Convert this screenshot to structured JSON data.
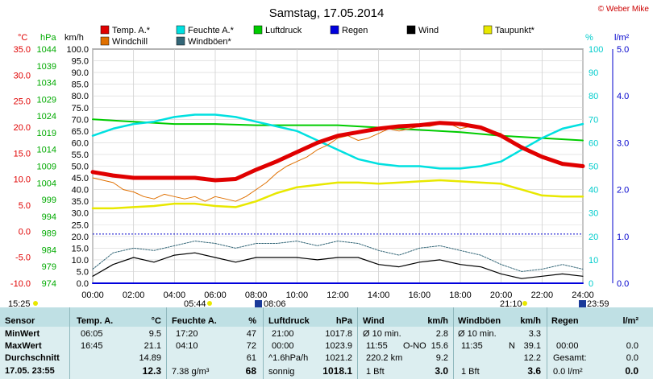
{
  "header": {
    "title": "Samstag, 17.05.2014",
    "copyright": "© Weber Mike"
  },
  "axis_units": {
    "temp": "°C",
    "pressure": "hPa",
    "wind": "km/h",
    "humidity": "%",
    "rain": "l/m²"
  },
  "legend": [
    {
      "label": "Temp. A.*",
      "color": "#e00000"
    },
    {
      "label": "Feuchte A.*",
      "color": "#00e0e0"
    },
    {
      "label": "Luftdruck",
      "color": "#00cc00"
    },
    {
      "label": "Regen",
      "color": "#0000dd"
    },
    {
      "label": "Wind",
      "color": "#000000"
    },
    {
      "label": "Taupunkt*",
      "color": "#e8e800"
    },
    {
      "label": "Windchill",
      "color": "#e07000"
    },
    {
      "label": "Windböen*",
      "color": "#336677"
    }
  ],
  "sun_marks": {
    "left_time": "15:25",
    "sunrise": "05:44",
    "sunrise2": "08:06",
    "sunset": "21:10",
    "right_time": "23:59"
  },
  "chart_data": {
    "type": "line",
    "x_ticks": [
      "00:00",
      "02:00",
      "04:00",
      "06:00",
      "08:00",
      "10:00",
      "12:00",
      "14:00",
      "16:00",
      "18:00",
      "20:00",
      "22:00",
      "24:00"
    ],
    "temp_ticks": [
      "35.0",
      "30.0",
      "25.0",
      "20.0",
      "15.0",
      "10.0",
      "5.0",
      "0.0",
      "-5.0",
      "-10.0"
    ],
    "pressure_ticks": [
      "1044",
      "1039",
      "1034",
      "1029",
      "1024",
      "1019",
      "1014",
      "1009",
      "1004",
      "999",
      "994",
      "989",
      "984",
      "979",
      "974"
    ],
    "wind_ticks": [
      "100.0",
      "95.0",
      "90.0",
      "85.0",
      "80.0",
      "75.0",
      "70.0",
      "65.0",
      "60.0",
      "55.0",
      "50.0",
      "45.0",
      "40.0",
      "35.0",
      "30.0",
      "25.0",
      "20.0",
      "15.0",
      "10.0",
      "5.0",
      "0.0"
    ],
    "humidity_ticks": [
      "100",
      "90",
      "80",
      "70",
      "60",
      "50",
      "40",
      "30",
      "20",
      "10",
      "0"
    ],
    "rain_ticks": [
      "5.0",
      "4.0",
      "3.0",
      "2.0",
      "1.0",
      "0.0"
    ],
    "wind_range": [
      0,
      100
    ],
    "x_range_hours": [
      0,
      24
    ],
    "series": [
      {
        "name": "Temp. A.*",
        "color": "#e00000",
        "hours": [
          0,
          1,
          2,
          3,
          4,
          5,
          6,
          7,
          8,
          9,
          10,
          11,
          12,
          13,
          14,
          15,
          16,
          17,
          18,
          19,
          20,
          21,
          22,
          23,
          24
        ],
        "values_kmh_scale": [
          47.5,
          46,
          45,
          45,
          45,
          45,
          44,
          44.5,
          48.5,
          52,
          56,
          60,
          63,
          64.5,
          66,
          67,
          67.5,
          68.5,
          68,
          66.5,
          63,
          58,
          54,
          51,
          50
        ]
      },
      {
        "name": "Windchill",
        "color": "#e07000",
        "hours": [
          0,
          0.5,
          1,
          1.5,
          2,
          2.5,
          3,
          3.5,
          4,
          4.5,
          5,
          5.5,
          6,
          6.5,
          7,
          7.5,
          8,
          8.5,
          9,
          9.5,
          10,
          10.5,
          11,
          11.5,
          12,
          12.5,
          13,
          13.5,
          14,
          14.5,
          15,
          15.5,
          16,
          16.5,
          17,
          17.5,
          18,
          18.5,
          19,
          19.5,
          20
        ],
        "values_kmh_scale": [
          45,
          44,
          43,
          40,
          39,
          37,
          36,
          38,
          37,
          36,
          37,
          35,
          37,
          36,
          35,
          37,
          40,
          43,
          47,
          50,
          52,
          54,
          57,
          59,
          62,
          63,
          61,
          62,
          64,
          66,
          65,
          66,
          67,
          67,
          68,
          68,
          66,
          67,
          66,
          65,
          64
        ]
      },
      {
        "name": "Feuchte A.*",
        "color": "#00e0e0",
        "hours": [
          0,
          1,
          2,
          3,
          4,
          5,
          6,
          7,
          8,
          9,
          10,
          11,
          12,
          13,
          14,
          15,
          16,
          17,
          18,
          19,
          20,
          21,
          22,
          23,
          24
        ],
        "values_pct": [
          63,
          66,
          68,
          69,
          71,
          72,
          72,
          71,
          69,
          67,
          65,
          61,
          57,
          53,
          51,
          50,
          50,
          49,
          49,
          50,
          52,
          57,
          62,
          66,
          68
        ]
      },
      {
        "name": "Luftdruck",
        "color": "#00cc00",
        "hours": [
          0,
          2,
          4,
          6,
          8,
          10,
          12,
          14,
          16,
          18,
          20,
          22,
          24
        ],
        "values_kmh_scale": [
          70,
          69,
          68,
          68,
          67.5,
          67.5,
          67.5,
          66.5,
          65.5,
          64.5,
          63,
          62,
          61
        ]
      },
      {
        "name": "Taupunkt*",
        "color": "#e8e800",
        "hours": [
          0,
          1,
          2,
          3,
          4,
          5,
          6,
          7,
          8,
          9,
          10,
          11,
          12,
          13,
          14,
          15,
          16,
          17,
          18,
          19,
          20,
          21,
          22,
          23,
          24
        ],
        "values_kmh_scale": [
          32,
          32,
          32.5,
          33,
          34,
          34,
          33,
          32.5,
          35,
          38.5,
          41,
          42,
          43,
          43,
          42.5,
          43,
          43.5,
          44,
          43.5,
          43,
          42.5,
          40,
          37.5,
          37,
          37
        ]
      },
      {
        "name": "Wind",
        "color": "#000000",
        "hours": [
          0,
          1,
          2,
          3,
          4,
          5,
          6,
          7,
          8,
          9,
          10,
          11,
          12,
          13,
          14,
          15,
          16,
          17,
          18,
          19,
          20,
          21,
          22,
          23,
          24
        ],
        "values_kmh": [
          3,
          8,
          11,
          9,
          12,
          13,
          11,
          9,
          11,
          11,
          11,
          10,
          11,
          11,
          8,
          7,
          9,
          10,
          8,
          7,
          4,
          2,
          3,
          4,
          3
        ]
      },
      {
        "name": "Windböen*",
        "color": "#336677",
        "hours": [
          0,
          1,
          2,
          3,
          4,
          5,
          6,
          7,
          8,
          9,
          10,
          11,
          12,
          13,
          14,
          15,
          16,
          17,
          18,
          19,
          20,
          21,
          22,
          23,
          24
        ],
        "values_kmh": [
          6,
          13,
          15,
          14,
          16,
          18,
          17,
          15,
          17,
          17,
          18,
          16,
          18,
          17,
          14,
          12,
          15,
          16,
          14,
          12,
          8,
          5,
          6,
          8,
          6
        ]
      },
      {
        "name": "Regen",
        "color": "#0000dd",
        "hours": [
          0,
          24
        ],
        "values_kmh": [
          0,
          0
        ]
      }
    ],
    "reference_line_kmh": 21
  },
  "table": {
    "rows": [
      "Sensor",
      "MinWert",
      "MaxWert",
      "Durchschnitt",
      "17.05. 23:55"
    ],
    "temp": {
      "header": "Temp. A.",
      "unit": "°C",
      "min_time": "06:05",
      "min": "9.5",
      "max_time": "16:45",
      "max": "21.1",
      "avg": "14.89",
      "current": "12.3"
    },
    "humidity": {
      "header": "Feuchte A.",
      "unit": "%",
      "min_time": "17:20",
      "min": "47",
      "max_time": "04:10",
      "max": "72",
      "avg": "61",
      "current_abs": "7.38 g/m³",
      "current": "68"
    },
    "pressure": {
      "header": "Luftdruck",
      "unit": "hPa",
      "min_time": "21:00",
      "min": "1017.8",
      "max_time": "00:00",
      "max": "1023.9",
      "trend": "^1.6hPa/h",
      "avg": "1021.2",
      "forecast": "sonnig",
      "current": "1018.1"
    },
    "wind": {
      "header": "Wind",
      "unit": "km/h",
      "r1_label": "Ø 10 min.",
      "r1_value": "2.8",
      "r2_time": "11:55",
      "r2_dir": "O-NO",
      "r2_value": "15.6",
      "r3_label": "220.2 km",
      "r3_value": "9.2",
      "r4_label": "1 Bft",
      "r4_value": "3.0"
    },
    "gusts": {
      "header": "Windböen",
      "unit": "km/h",
      "r1_label": "Ø 10 min.",
      "r1_value": "3.3",
      "r2_time": "11:35",
      "r2_dir": "N",
      "r2_value": "39.1",
      "r3_value": "12.2",
      "r4_label": "1 Bft",
      "r4_value": "3.6"
    },
    "rain": {
      "header": "Regen",
      "unit": "l/m²",
      "r2_time": "00:00",
      "r2_value": "0.0",
      "r3_label": "Gesamt:",
      "r3_value": "0.0",
      "r4_label": "0.0 l/m²",
      "r4_value": "0.0"
    }
  }
}
